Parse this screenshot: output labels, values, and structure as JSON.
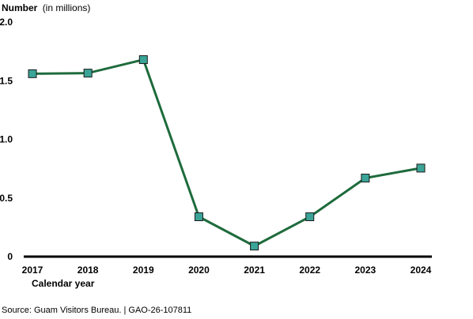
{
  "chart_data": {
    "type": "line",
    "ylabel_bold": "Number",
    "ylabel_unit": "(in millions)",
    "xlabel": "Calendar year",
    "categories": [
      "2017",
      "2018",
      "2019",
      "2020",
      "2021",
      "2022",
      "2023",
      "2024"
    ],
    "values": [
      1.56,
      1.565,
      1.68,
      0.34,
      0.09,
      0.34,
      0.67,
      0.755
    ],
    "ylim": [
      0,
      2.0
    ],
    "y_ticks": [
      0,
      0.5,
      1.0,
      1.5,
      2.0
    ],
    "y_tick_labels": [
      "0",
      "0.5",
      "1.0",
      "1.5",
      "2.0"
    ],
    "grid": false,
    "line_color": "#1e6b3c",
    "marker_color": "#3aa497",
    "marker_shape": "square"
  },
  "source_text": "Source: Guam Visitors Bureau.  |  GAO-26-107811"
}
